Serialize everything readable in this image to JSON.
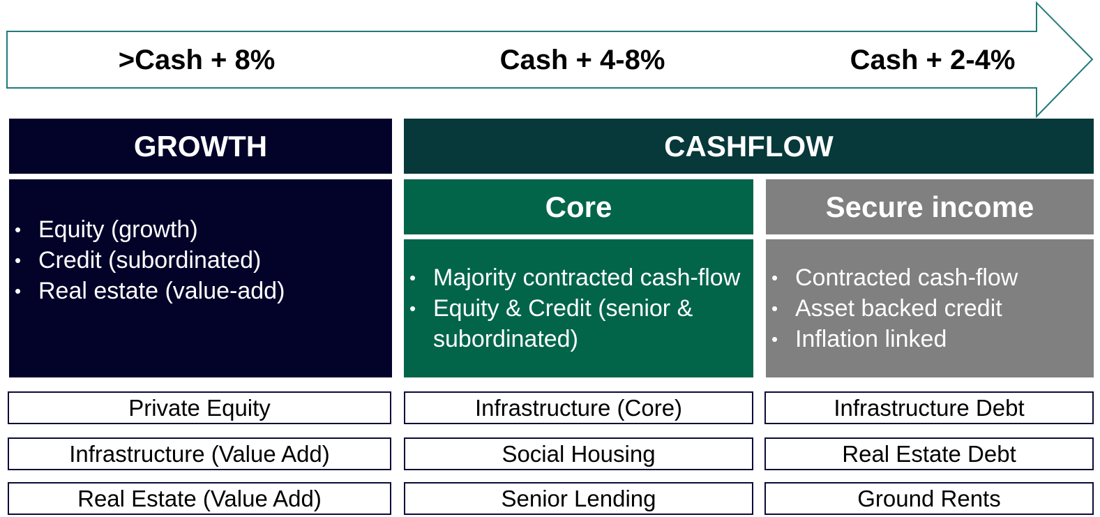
{
  "arrow_labels": [
    ">Cash + 8%",
    "Cash + 4-8%",
    "Cash + 2-4%"
  ],
  "groups": {
    "growth": "GROWTH",
    "cashflow": "CASHFLOW"
  },
  "columns": [
    {
      "title": null,
      "bullets": [
        "Equity (growth)",
        "Credit (subordinated)",
        "Real estate (value-add)"
      ],
      "items": [
        "Private Equity",
        "Infrastructure (Value Add)",
        "Real Estate (Value Add)"
      ]
    },
    {
      "title": "Core",
      "bullets": [
        "Majority contracted cash-flow",
        "Equity & Credit (senior & subordinated)"
      ],
      "items": [
        "Infrastructure (Core)",
        "Social Housing",
        "Senior Lending"
      ]
    },
    {
      "title": "Secure income",
      "bullets": [
        "Contracted cash-flow",
        "Asset backed credit",
        "Inflation linked"
      ],
      "items": [
        "Infrastructure Debt",
        "Real Estate Debt",
        "Ground Rents"
      ]
    }
  ]
}
